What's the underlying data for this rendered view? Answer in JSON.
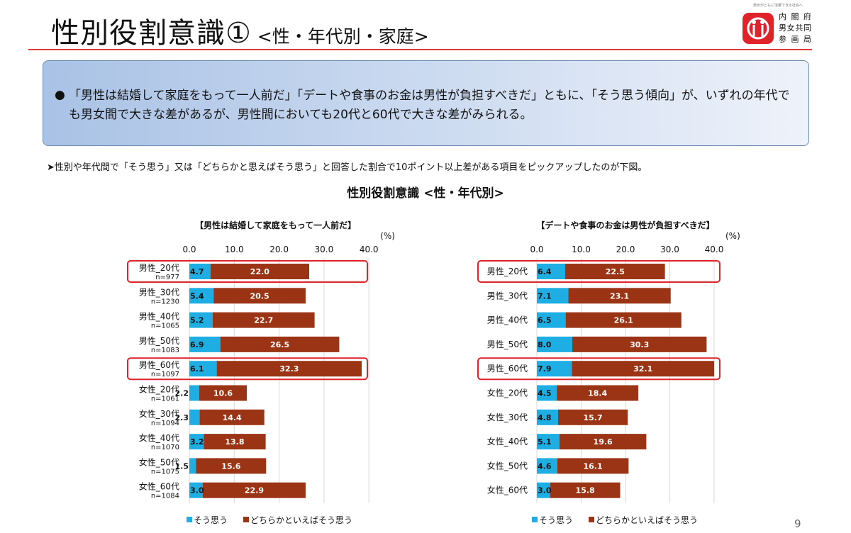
{
  "header": {
    "title": "性別役割意識①",
    "subtitle": "<性・年代別・家庭>"
  },
  "logo": {
    "tagline": "男女がともに活躍できる社会へ",
    "org_line1": "内閣府",
    "org_line2": "男女共同",
    "org_line3": "参画局"
  },
  "summary": {
    "bullet": "●",
    "text": "「男性は結婚して家庭をもって一人前だ」「デートや食事のお金は男性が負担すべきだ」ともに、「そう思う傾向」が、いずれの年代でも男女間で大きな差があるが、男性間においても20代と60代で大きな差がみられる。"
  },
  "note": "➤性別や年代間で「そう思う」又は「どちらかと思えばそう思う」と回答した割合で10ポイント以上差がある項目をピックアップしたのが下図。",
  "chart_title": "性別役割意識 <性・年代別>",
  "page_number": "9",
  "colors": {
    "agree": "#1eaee3",
    "somewhat_agree": "#9b3414",
    "highlight_border": "#e0232b",
    "grid": "#d9d9d9"
  },
  "chart_data": [
    {
      "type": "bar",
      "orientation": "horizontal",
      "stacked": true,
      "title": "【男性は結婚して家庭をもって一人前だ】",
      "unit": "(%)",
      "xlim": [
        0,
        40
      ],
      "xticks": [
        "0.0",
        "10.0",
        "20.0",
        "30.0",
        "40.0"
      ],
      "categories": [
        "男性_20代",
        "男性_30代",
        "男性_40代",
        "男性_50代",
        "男性_60代",
        "女性_20代",
        "女性_30代",
        "女性_40代",
        "女性_50代",
        "女性_60代"
      ],
      "sample_sizes": [
        "n=977",
        "n=1230",
        "n=1065",
        "n=1083",
        "n=1097",
        "n=1061",
        "n=1094",
        "n=1070",
        "n=1075",
        "n=1084"
      ],
      "highlighted": [
        "男性_20代",
        "男性_60代"
      ],
      "series": [
        {
          "name": "そう思う",
          "values": [
            4.7,
            5.4,
            5.2,
            6.9,
            6.1,
            2.2,
            2.3,
            3.2,
            1.5,
            3.0
          ]
        },
        {
          "name": "どちらかといえばそう思う",
          "values": [
            22.0,
            20.5,
            22.7,
            26.5,
            32.3,
            10.6,
            14.4,
            13.8,
            15.6,
            22.9
          ]
        }
      ],
      "legend": "bottom"
    },
    {
      "type": "bar",
      "orientation": "horizontal",
      "stacked": true,
      "title": "【デートや食事のお金は男性が負担すべきだ】",
      "unit": "(%)",
      "xlim": [
        0,
        40
      ],
      "xticks": [
        "0.0",
        "10.0",
        "20.0",
        "30.0",
        "40.0"
      ],
      "categories": [
        "男性_20代",
        "男性_30代",
        "男性_40代",
        "男性_50代",
        "男性_60代",
        "女性_20代",
        "女性_30代",
        "女性_40代",
        "女性_50代",
        "女性_60代"
      ],
      "highlighted": [
        "男性_20代",
        "男性_60代"
      ],
      "series": [
        {
          "name": "そう思う",
          "values": [
            6.4,
            7.1,
            6.5,
            8.0,
            7.9,
            4.5,
            4.8,
            5.1,
            4.6,
            3.0
          ]
        },
        {
          "name": "どちらかといえばそう思う",
          "values": [
            22.5,
            23.1,
            26.1,
            30.3,
            32.1,
            18.4,
            15.7,
            19.6,
            16.1,
            15.8
          ]
        }
      ],
      "legend": "bottom"
    }
  ]
}
